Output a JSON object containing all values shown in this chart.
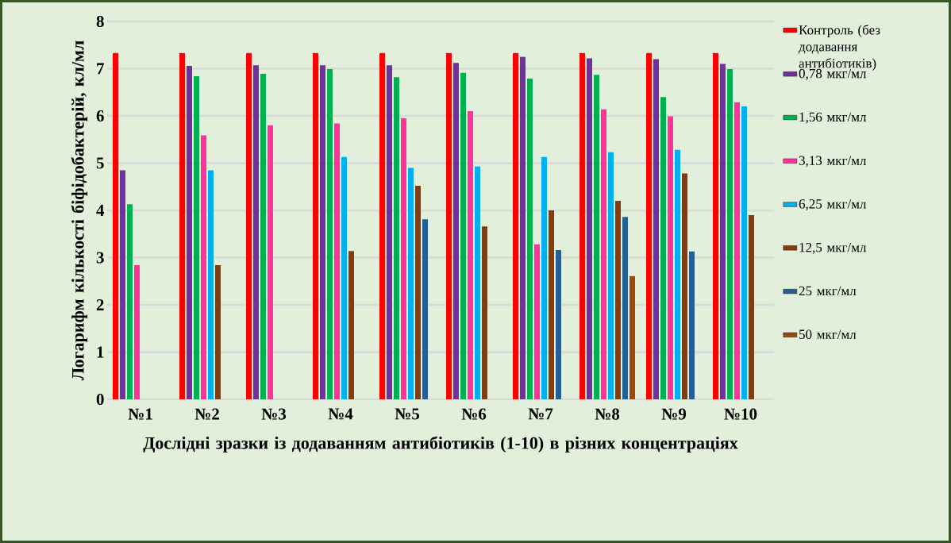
{
  "chart_data": {
    "type": "bar",
    "xlabel": "Дослідні зразки із додаванням  антибіотиків  (1-10) в різних концентраціях",
    "ylabel": "Логарифм кількості  біфідобактерій, кл/мл",
    "categories": [
      "№1",
      "№2",
      "№3",
      "№4",
      "№5",
      "№6",
      "№7",
      "№8",
      "№9",
      "№10"
    ],
    "series": [
      {
        "name": "Контроль (без додавання антибіотиків)",
        "color": "#ff0000",
        "values": [
          7.33,
          7.33,
          7.33,
          7.33,
          7.33,
          7.33,
          7.33,
          7.33,
          7.33,
          7.33
        ]
      },
      {
        "name": "0,78 мкг/мл",
        "color": "#7030a0",
        "values": [
          4.85,
          7.06,
          7.07,
          7.07,
          7.07,
          7.12,
          7.25,
          7.22,
          7.2,
          7.1
        ]
      },
      {
        "name": "1,56 мкг/мл",
        "color": "#00b050",
        "values": [
          4.13,
          6.84,
          6.89,
          6.99,
          6.82,
          6.91,
          6.79,
          6.87,
          6.4,
          6.99
        ]
      },
      {
        "name": "3,13 мкг/мл",
        "color": "#ff3399",
        "values": [
          2.84,
          5.59,
          5.8,
          5.84,
          5.95,
          6.1,
          3.28,
          6.14,
          5.99,
          6.29
        ]
      },
      {
        "name": "6,25 мкг/мл",
        "color": "#00b0f0",
        "values": [
          null,
          4.85,
          null,
          5.13,
          4.9,
          4.93,
          5.13,
          5.23,
          5.28,
          6.2
        ]
      },
      {
        "name": "12,5 мкг/мл",
        "color": "#843c0c",
        "values": [
          null,
          2.84,
          null,
          3.14,
          4.52,
          3.66,
          4.0,
          4.2,
          4.78,
          3.9
        ]
      },
      {
        "name": "25 мкг/мл",
        "color": "#255e91",
        "values": [
          null,
          null,
          null,
          null,
          3.81,
          null,
          3.16,
          3.86,
          3.13,
          null
        ]
      },
      {
        "name": "50 мкг/мл",
        "color": "#9e480e",
        "values": [
          null,
          null,
          null,
          null,
          null,
          null,
          null,
          2.61,
          null,
          null
        ]
      }
    ],
    "ylim": [
      0,
      8
    ],
    "yticks": [
      0,
      1,
      2,
      3,
      4,
      5,
      6,
      7,
      8
    ],
    "grid": "y",
    "legend": "right"
  }
}
